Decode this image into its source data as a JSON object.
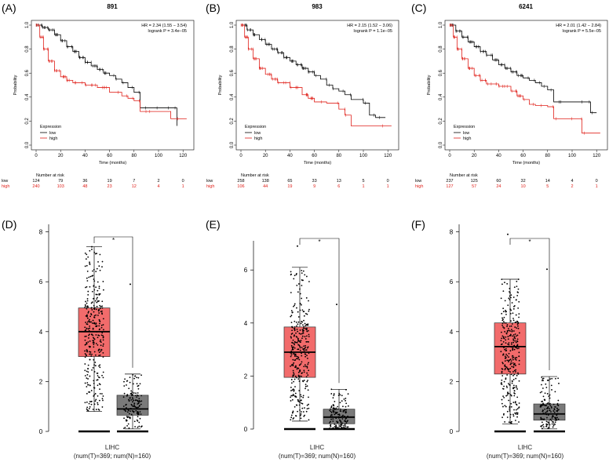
{
  "panel_labels": [
    "(A)",
    "(B)",
    "(C)",
    "(D)",
    "(E)",
    "(F)"
  ],
  "colors": {
    "low": "#000000",
    "high": "#e0201a",
    "tumor_box": "#f26b6b",
    "normal_box": "#7a7a7a",
    "star": "#e0201a"
  },
  "chart_data": [
    {
      "type": "line",
      "title": "891",
      "xlabel": "Time (months)",
      "ylabel": "Probability",
      "xlim": [
        0,
        125
      ],
      "ylim": [
        0,
        1
      ],
      "xticks": [
        0,
        20,
        40,
        60,
        80,
        100,
        120
      ],
      "yticks": [
        0.0,
        0.2,
        0.4,
        0.6,
        0.8,
        1.0
      ],
      "stats": {
        "hr": "HR = 2.34 (1.55 − 3.54)",
        "logrank": "logrank P = 3.4e−05"
      },
      "legend": {
        "title": "Expression",
        "entries": [
          "low",
          "high"
        ]
      },
      "risk_table": {
        "title": "Number at risk",
        "low": [
          "124",
          "79",
          "36",
          "19",
          "7",
          "2",
          "0"
        ],
        "high": [
          "240",
          "103",
          "48",
          "23",
          "12",
          "4",
          "1"
        ]
      },
      "series": [
        {
          "name": "low",
          "points": [
            [
              0,
              1.0
            ],
            [
              5,
              0.98
            ],
            [
              10,
              0.96
            ],
            [
              15,
              0.92
            ],
            [
              20,
              0.87
            ],
            [
              25,
              0.82
            ],
            [
              30,
              0.78
            ],
            [
              35,
              0.73
            ],
            [
              40,
              0.69
            ],
            [
              45,
              0.66
            ],
            [
              50,
              0.63
            ],
            [
              55,
              0.6
            ],
            [
              60,
              0.58
            ],
            [
              65,
              0.55
            ],
            [
              70,
              0.52
            ],
            [
              75,
              0.48
            ],
            [
              80,
              0.44
            ],
            [
              85,
              0.31
            ],
            [
              90,
              0.31
            ],
            [
              100,
              0.31
            ],
            [
              110,
              0.31
            ],
            [
              115,
              0.16
            ]
          ]
        },
        {
          "name": "high",
          "points": [
            [
              0,
              1.0
            ],
            [
              3,
              0.9
            ],
            [
              6,
              0.8
            ],
            [
              10,
              0.7
            ],
            [
              15,
              0.62
            ],
            [
              20,
              0.57
            ],
            [
              25,
              0.54
            ],
            [
              30,
              0.52
            ],
            [
              40,
              0.5
            ],
            [
              50,
              0.48
            ],
            [
              60,
              0.44
            ],
            [
              70,
              0.41
            ],
            [
              75,
              0.39
            ],
            [
              80,
              0.37
            ],
            [
              85,
              0.28
            ],
            [
              90,
              0.28
            ],
            [
              110,
              0.22
            ],
            [
              123,
              0.22
            ]
          ]
        }
      ]
    },
    {
      "type": "line",
      "title": "983",
      "xlabel": "Time (months)",
      "ylabel": "Probability",
      "xlim": [
        0,
        125
      ],
      "ylim": [
        0,
        1
      ],
      "xticks": [
        0,
        20,
        40,
        60,
        80,
        100,
        120
      ],
      "yticks": [
        0.0,
        0.2,
        0.4,
        0.6,
        0.8,
        1.0
      ],
      "stats": {
        "hr": "HR = 2.15 (1.52 − 3.06)",
        "logrank": "logrank P = 1.1e−05"
      },
      "legend": {
        "title": "Expression",
        "entries": [
          "low",
          "high"
        ]
      },
      "risk_table": {
        "title": "Number at risk",
        "low": [
          "258",
          "138",
          "65",
          "33",
          "13",
          "5",
          "0"
        ],
        "high": [
          "106",
          "44",
          "19",
          "9",
          "6",
          "1",
          "1"
        ]
      },
      "series": [
        {
          "name": "low",
          "points": [
            [
              0,
              1.0
            ],
            [
              5,
              0.96
            ],
            [
              10,
              0.92
            ],
            [
              15,
              0.88
            ],
            [
              20,
              0.84
            ],
            [
              25,
              0.8
            ],
            [
              30,
              0.77
            ],
            [
              35,
              0.73
            ],
            [
              40,
              0.7
            ],
            [
              45,
              0.67
            ],
            [
              50,
              0.64
            ],
            [
              55,
              0.61
            ],
            [
              60,
              0.58
            ],
            [
              65,
              0.55
            ],
            [
              70,
              0.5
            ],
            [
              75,
              0.47
            ],
            [
              80,
              0.45
            ],
            [
              85,
              0.42
            ],
            [
              90,
              0.38
            ],
            [
              100,
              0.35
            ],
            [
              105,
              0.25
            ],
            [
              110,
              0.23
            ],
            [
              118,
              0.23
            ]
          ]
        },
        {
          "name": "high",
          "points": [
            [
              0,
              1.0
            ],
            [
              3,
              0.9
            ],
            [
              6,
              0.8
            ],
            [
              10,
              0.72
            ],
            [
              15,
              0.64
            ],
            [
              20,
              0.59
            ],
            [
              25,
              0.55
            ],
            [
              30,
              0.52
            ],
            [
              40,
              0.48
            ],
            [
              50,
              0.42
            ],
            [
              55,
              0.39
            ],
            [
              60,
              0.36
            ],
            [
              70,
              0.35
            ],
            [
              80,
              0.3
            ],
            [
              85,
              0.25
            ],
            [
              90,
              0.16
            ],
            [
              123,
              0.16
            ]
          ]
        }
      ]
    },
    {
      "type": "line",
      "title": "6241",
      "xlabel": "Time (months)",
      "ylabel": "Probability",
      "xlim": [
        0,
        125
      ],
      "ylim": [
        0,
        1
      ],
      "xticks": [
        0,
        20,
        40,
        60,
        80,
        100,
        120
      ],
      "yticks": [
        0.0,
        0.2,
        0.4,
        0.6,
        0.8,
        1.0
      ],
      "stats": {
        "hr": "HR = 2.01 (1.42 − 2.84)",
        "logrank": "logrank P = 5.5e−05"
      },
      "legend": {
        "title": "Expression",
        "entries": [
          "low",
          "high"
        ]
      },
      "risk_table": {
        "title": "Number at risk",
        "low": [
          "237",
          "125",
          "60",
          "32",
          "14",
          "4",
          "0"
        ],
        "high": [
          "127",
          "57",
          "24",
          "10",
          "5",
          "2",
          "1"
        ]
      },
      "series": [
        {
          "name": "low",
          "points": [
            [
              0,
              1.0
            ],
            [
              5,
              0.95
            ],
            [
              10,
              0.9
            ],
            [
              15,
              0.86
            ],
            [
              20,
              0.82
            ],
            [
              25,
              0.78
            ],
            [
              30,
              0.75
            ],
            [
              35,
              0.71
            ],
            [
              40,
              0.67
            ],
            [
              45,
              0.64
            ],
            [
              50,
              0.61
            ],
            [
              55,
              0.58
            ],
            [
              60,
              0.56
            ],
            [
              65,
              0.54
            ],
            [
              70,
              0.52
            ],
            [
              75,
              0.49
            ],
            [
              80,
              0.46
            ],
            [
              85,
              0.36
            ],
            [
              90,
              0.36
            ],
            [
              100,
              0.36
            ],
            [
              110,
              0.36
            ],
            [
              115,
              0.27
            ],
            [
              120,
              0.27
            ]
          ]
        },
        {
          "name": "high",
          "points": [
            [
              0,
              1.0
            ],
            [
              3,
              0.9
            ],
            [
              6,
              0.8
            ],
            [
              10,
              0.72
            ],
            [
              15,
              0.64
            ],
            [
              20,
              0.58
            ],
            [
              25,
              0.54
            ],
            [
              30,
              0.51
            ],
            [
              40,
              0.49
            ],
            [
              50,
              0.45
            ],
            [
              55,
              0.41
            ],
            [
              60,
              0.38
            ],
            [
              65,
              0.34
            ],
            [
              70,
              0.33
            ],
            [
              80,
              0.32
            ],
            [
              85,
              0.22
            ],
            [
              90,
              0.22
            ],
            [
              105,
              0.22
            ],
            [
              108,
              0.1
            ],
            [
              123,
              0.1
            ]
          ]
        }
      ]
    },
    {
      "type": "box",
      "ylim": [
        0,
        8.3
      ],
      "yticks": [
        0,
        2,
        4,
        6,
        8
      ],
      "xlabel": "LIHC",
      "caption": "(num(T)=369; num(N)=160)",
      "significance": "*",
      "groups": [
        {
          "name": "T",
          "n": 369,
          "q1": 3.0,
          "median": 4.0,
          "q3": 4.95,
          "whisker_low": 0.8,
          "whisker_high": 7.4,
          "max": 7.4
        },
        {
          "name": "N",
          "n": 160,
          "q1": 0.65,
          "median": 0.9,
          "q3": 1.45,
          "whisker_low": 0.1,
          "whisker_high": 2.3,
          "max": 5.9
        }
      ]
    },
    {
      "type": "box",
      "ylim": [
        0,
        7.1
      ],
      "yticks": [
        0,
        2,
        4,
        6
      ],
      "xlabel": "LIHC",
      "caption": "(num(T)=369; num(N)=160)",
      "significance": "*",
      "groups": [
        {
          "name": "T",
          "n": 369,
          "q1": 1.95,
          "median": 2.9,
          "q3": 3.85,
          "whisker_low": 0.3,
          "whisker_high": 6.1,
          "max": 6.9
        },
        {
          "name": "N",
          "n": 160,
          "q1": 0.2,
          "median": 0.45,
          "q3": 0.75,
          "whisker_low": 0.0,
          "whisker_high": 1.5,
          "max": 4.7
        }
      ]
    },
    {
      "type": "box",
      "ylim": [
        0,
        8.3
      ],
      "yticks": [
        0,
        2,
        4,
        6,
        8
      ],
      "xlabel": "LIHC",
      "caption": "(num(T)=369; num(N)=160)",
      "significance": "*",
      "groups": [
        {
          "name": "T",
          "n": 369,
          "q1": 2.3,
          "median": 3.4,
          "q3": 4.35,
          "whisker_low": 0.3,
          "whisker_high": 6.1,
          "max": 7.9
        },
        {
          "name": "N",
          "n": 160,
          "q1": 0.45,
          "median": 0.7,
          "q3": 1.1,
          "whisker_low": 0.1,
          "whisker_high": 2.2,
          "max": 6.5
        }
      ]
    }
  ]
}
